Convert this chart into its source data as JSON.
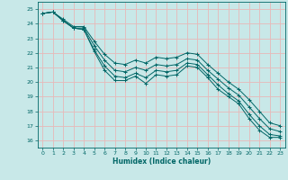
{
  "xlabel": "Humidex (Indice chaleur)",
  "background_color": "#c8e8e8",
  "grid_color": "#e8b8b8",
  "line_color": "#006666",
  "xlim": [
    -0.5,
    23.5
  ],
  "ylim": [
    15.5,
    25.5
  ],
  "yticks": [
    16,
    17,
    18,
    19,
    20,
    21,
    22,
    23,
    24,
    25
  ],
  "xticks": [
    0,
    1,
    2,
    3,
    4,
    5,
    6,
    7,
    8,
    9,
    10,
    11,
    12,
    13,
    14,
    15,
    16,
    17,
    18,
    19,
    20,
    21,
    22,
    23
  ],
  "series": [
    [
      24.7,
      24.8,
      24.2,
      23.7,
      23.6,
      22.1,
      20.8,
      20.1,
      20.1,
      20.4,
      19.9,
      20.5,
      20.4,
      20.5,
      21.1,
      21.0,
      20.3,
      19.5,
      19.0,
      18.5,
      17.5,
      16.7,
      16.2,
      16.2
    ],
    [
      24.7,
      24.8,
      24.2,
      23.7,
      23.6,
      22.2,
      21.1,
      20.4,
      20.3,
      20.6,
      20.3,
      20.8,
      20.7,
      20.8,
      21.3,
      21.2,
      20.5,
      19.8,
      19.2,
      18.7,
      17.8,
      17.0,
      16.4,
      16.3
    ],
    [
      24.7,
      24.8,
      24.2,
      23.7,
      23.7,
      22.5,
      21.5,
      20.8,
      20.7,
      21.0,
      20.8,
      21.2,
      21.1,
      21.2,
      21.6,
      21.5,
      20.8,
      20.2,
      19.6,
      19.1,
      18.3,
      17.5,
      16.8,
      16.6
    ],
    [
      24.7,
      24.8,
      24.3,
      23.8,
      23.8,
      22.8,
      21.9,
      21.3,
      21.2,
      21.5,
      21.3,
      21.7,
      21.6,
      21.7,
      22.0,
      21.9,
      21.2,
      20.6,
      20.0,
      19.5,
      18.8,
      18.0,
      17.2,
      17.0
    ]
  ]
}
